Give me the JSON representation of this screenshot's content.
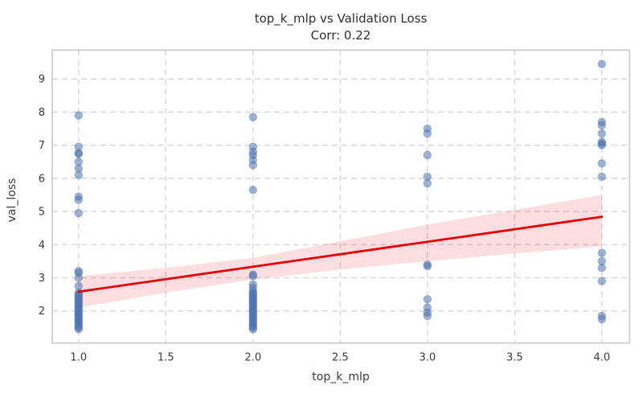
{
  "figure": {
    "background": "#ffffff"
  },
  "chart_data": {
    "type": "scatter",
    "title": "top_k_mlp vs Validation Loss",
    "subtitle": "Corr: 0.22",
    "correlation": 0.22,
    "xlabel": "top_k_mlp",
    "ylabel": "val_loss",
    "xlim": [
      0.849,
      4.159
    ],
    "ylim": [
      1.03,
      9.87
    ],
    "x_ticks": [
      1.0,
      1.5,
      2.0,
      2.5,
      3.0,
      3.5,
      4.0
    ],
    "y_ticks": [
      2,
      3,
      4,
      5,
      6,
      7,
      8,
      9
    ],
    "grid": "dashed-both-axes",
    "legend": "none",
    "colors": {
      "scatter": "#4c72b0",
      "scatter_opacity": 0.55,
      "regression_line": "#e50000",
      "confidence_band": "#e81123",
      "confidence_band_opacity": 0.14,
      "gridline": "#d4d4d4",
      "spine": "#c8c8c8",
      "text": "#3a3a3a"
    },
    "series": [
      {
        "name": "observations",
        "type": "scatter",
        "points": [
          [
            1,
            7.9
          ],
          [
            1,
            6.95
          ],
          [
            1,
            6.75
          ],
          [
            1,
            6.75
          ],
          [
            1,
            6.5
          ],
          [
            1,
            6.3
          ],
          [
            1,
            6.1
          ],
          [
            1,
            5.45
          ],
          [
            1,
            5.35
          ],
          [
            1,
            4.95
          ],
          [
            1,
            3.2
          ],
          [
            1,
            3.15
          ],
          [
            1,
            3.0
          ],
          [
            1,
            2.75
          ],
          [
            1,
            2.55
          ],
          [
            1,
            2.5
          ],
          [
            1,
            2.45
          ],
          [
            1,
            2.4
          ],
          [
            1,
            2.35
          ],
          [
            1,
            2.3
          ],
          [
            1,
            2.25
          ],
          [
            1,
            2.2
          ],
          [
            1,
            2.15
          ],
          [
            1,
            2.1
          ],
          [
            1,
            2.05
          ],
          [
            1,
            2.0
          ],
          [
            1,
            1.95
          ],
          [
            1,
            1.9
          ],
          [
            1,
            1.85
          ],
          [
            1,
            1.8
          ],
          [
            1,
            1.75
          ],
          [
            1,
            1.7
          ],
          [
            1,
            1.65
          ],
          [
            1,
            1.6
          ],
          [
            1,
            1.55
          ],
          [
            1,
            1.5
          ],
          [
            1,
            1.45
          ],
          [
            2,
            7.85
          ],
          [
            2,
            6.95
          ],
          [
            2,
            6.8
          ],
          [
            2,
            6.7
          ],
          [
            2,
            6.55
          ],
          [
            2,
            6.4
          ],
          [
            2,
            5.65
          ],
          [
            2,
            3.1
          ],
          [
            2,
            3.05
          ],
          [
            2,
            2.8
          ],
          [
            2,
            2.7
          ],
          [
            2,
            2.6
          ],
          [
            2,
            2.55
          ],
          [
            2,
            2.5
          ],
          [
            2,
            2.45
          ],
          [
            2,
            2.4
          ],
          [
            2,
            2.35
          ],
          [
            2,
            2.3
          ],
          [
            2,
            2.25
          ],
          [
            2,
            2.2
          ],
          [
            2,
            2.15
          ],
          [
            2,
            2.1
          ],
          [
            2,
            2.05
          ],
          [
            2,
            2.0
          ],
          [
            2,
            1.95
          ],
          [
            2,
            1.9
          ],
          [
            2,
            1.85
          ],
          [
            2,
            1.8
          ],
          [
            2,
            1.75
          ],
          [
            2,
            1.7
          ],
          [
            2,
            1.65
          ],
          [
            2,
            1.6
          ],
          [
            2,
            1.55
          ],
          [
            2,
            1.5
          ],
          [
            2,
            1.45
          ],
          [
            3,
            7.5
          ],
          [
            3,
            7.35
          ],
          [
            3,
            6.7
          ],
          [
            3,
            6.05
          ],
          [
            3,
            5.85
          ],
          [
            3,
            3.4
          ],
          [
            3,
            3.35
          ],
          [
            3,
            2.35
          ],
          [
            3,
            2.1
          ],
          [
            3,
            1.95
          ],
          [
            3,
            1.85
          ],
          [
            4,
            9.45
          ],
          [
            4,
            7.7
          ],
          [
            4,
            7.6
          ],
          [
            4,
            7.35
          ],
          [
            4,
            7.1
          ],
          [
            4,
            7.05
          ],
          [
            4,
            7.0
          ],
          [
            4,
            6.45
          ],
          [
            4,
            6.05
          ],
          [
            4,
            3.75
          ],
          [
            4,
            3.5
          ],
          [
            4,
            3.3
          ],
          [
            4,
            2.9
          ],
          [
            4,
            1.85
          ],
          [
            4,
            1.75
          ]
        ]
      },
      {
        "name": "regression-line",
        "type": "line",
        "points": [
          [
            1,
            2.58
          ],
          [
            4,
            4.84
          ]
        ]
      },
      {
        "name": "confidence-band",
        "type": "band",
        "x": [
          1,
          1.5,
          2,
          2.5,
          3,
          3.5,
          4
        ],
        "upper": [
          3.05,
          3.3,
          3.6,
          4.1,
          4.6,
          5.05,
          5.5
        ],
        "lower": [
          2.1,
          2.55,
          2.95,
          3.25,
          3.5,
          3.73,
          3.95
        ]
      }
    ]
  }
}
